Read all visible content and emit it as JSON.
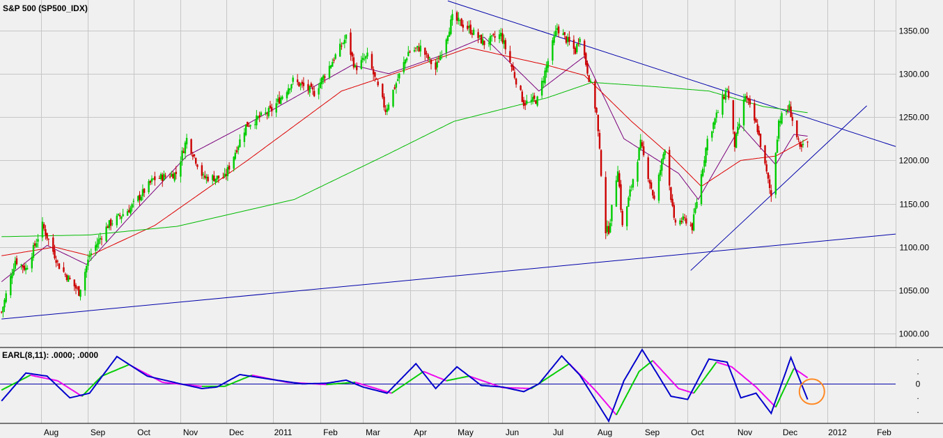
{
  "chart_data": [
    {
      "type": "candlestick",
      "title": "S&P 500 (SP500_IDX)",
      "ylim": [
        985,
        1385
      ],
      "y_ticks": [
        "1350.00",
        "1300.00",
        "1250.00",
        "1200.00",
        "1150.00",
        "1100.00",
        "1050.00",
        "1000.00"
      ],
      "y_tick_values": [
        1350,
        1300,
        1250,
        1200,
        1150,
        1100,
        1050,
        1000
      ],
      "x_ticks": [
        "Aug",
        "Sep",
        "Oct",
        "Nov",
        "Dec",
        "2011",
        "Feb",
        "Mar",
        "Apr",
        "May",
        "Jun",
        "Jul",
        "Aug",
        "Sep",
        "Oct",
        "Nov",
        "Dec",
        "2012",
        "Feb"
      ],
      "x_tick_dates": [
        "2010-08-01",
        "2010-09-01",
        "2010-10-01",
        "2010-11-01",
        "2010-12-01",
        "2011-01-01",
        "2011-02-01",
        "2011-03-01",
        "2011-04-01",
        "2011-05-01",
        "2011-06-01",
        "2011-07-01",
        "2011-08-01",
        "2011-09-01",
        "2011-10-01",
        "2011-11-01",
        "2011-12-01",
        "2012-01-01",
        "2012-02-01"
      ],
      "xlim": [
        "2010-07-05",
        "2012-02-15"
      ],
      "grid": true,
      "colors": {
        "up": "#00cc00",
        "down": "#cc0000",
        "trendline": "#0000aa",
        "ma_short": "#7a007a",
        "ma_mid": "#dd0000",
        "ma_long": "#00bb00"
      },
      "close_anchors": [
        {
          "date": "2010-07-06",
          "close": 1025
        },
        {
          "date": "2010-07-15",
          "close": 1085
        },
        {
          "date": "2010-07-22",
          "close": 1075
        },
        {
          "date": "2010-08-02",
          "close": 1125
        },
        {
          "date": "2010-08-13",
          "close": 1078
        },
        {
          "date": "2010-08-26",
          "close": 1048
        },
        {
          "date": "2010-09-02",
          "close": 1090
        },
        {
          "date": "2010-09-14",
          "close": 1125
        },
        {
          "date": "2010-09-29",
          "close": 1145
        },
        {
          "date": "2010-10-14",
          "close": 1178
        },
        {
          "date": "2010-10-29",
          "close": 1185
        },
        {
          "date": "2010-11-05",
          "close": 1225
        },
        {
          "date": "2010-11-16",
          "close": 1180
        },
        {
          "date": "2010-11-30",
          "close": 1180
        },
        {
          "date": "2010-12-14",
          "close": 1240
        },
        {
          "date": "2010-12-31",
          "close": 1258
        },
        {
          "date": "2011-01-14",
          "close": 1292
        },
        {
          "date": "2011-01-28",
          "close": 1278
        },
        {
          "date": "2011-02-18",
          "close": 1342
        },
        {
          "date": "2011-02-24",
          "close": 1306
        },
        {
          "date": "2011-03-04",
          "close": 1320
        },
        {
          "date": "2011-03-16",
          "close": 1258
        },
        {
          "date": "2011-03-31",
          "close": 1325
        },
        {
          "date": "2011-04-08",
          "close": 1330
        },
        {
          "date": "2011-04-18",
          "close": 1305
        },
        {
          "date": "2011-04-29",
          "close": 1364
        },
        {
          "date": "2011-05-10",
          "close": 1352
        },
        {
          "date": "2011-05-20",
          "close": 1335
        },
        {
          "date": "2011-05-31",
          "close": 1345
        },
        {
          "date": "2011-06-15",
          "close": 1266
        },
        {
          "date": "2011-06-24",
          "close": 1270
        },
        {
          "date": "2011-07-07",
          "close": 1353
        },
        {
          "date": "2011-07-19",
          "close": 1326
        },
        {
          "date": "2011-07-22",
          "close": 1345
        },
        {
          "date": "2011-08-02",
          "close": 1254
        },
        {
          "date": "2011-08-08",
          "close": 1119
        },
        {
          "date": "2011-08-10",
          "close": 1120
        },
        {
          "date": "2011-08-16",
          "close": 1192
        },
        {
          "date": "2011-08-19",
          "close": 1123
        },
        {
          "date": "2011-08-31",
          "close": 1219
        },
        {
          "date": "2011-09-09",
          "close": 1154
        },
        {
          "date": "2011-09-16",
          "close": 1216
        },
        {
          "date": "2011-09-22",
          "close": 1129
        },
        {
          "date": "2011-09-30",
          "close": 1131
        },
        {
          "date": "2011-10-04",
          "close": 1123
        },
        {
          "date": "2011-10-14",
          "close": 1224
        },
        {
          "date": "2011-10-27",
          "close": 1284
        },
        {
          "date": "2011-11-01",
          "close": 1218
        },
        {
          "date": "2011-11-08",
          "close": 1275
        },
        {
          "date": "2011-11-16",
          "close": 1236
        },
        {
          "date": "2011-11-25",
          "close": 1159
        },
        {
          "date": "2011-11-30",
          "close": 1246
        },
        {
          "date": "2011-12-07",
          "close": 1261
        },
        {
          "date": "2011-12-14",
          "close": 1212
        },
        {
          "date": "2011-12-19",
          "close": 1220
        }
      ],
      "moving_averages": [
        {
          "points": [
            {
              "date": "2010-07-06",
              "value": 1060
            },
            {
              "date": "2010-08-05",
              "value": 1102
            },
            {
              "date": "2010-08-31",
              "value": 1080
            },
            {
              "date": "2010-09-30",
              "value": 1138
            },
            {
              "date": "2010-11-05",
              "value": 1205
            },
            {
              "date": "2010-12-15",
              "value": 1242
            },
            {
              "date": "2011-02-22",
              "value": 1310
            },
            {
              "date": "2011-03-18",
              "value": 1300
            },
            {
              "date": "2011-04-20",
              "value": 1320
            },
            {
              "date": "2011-05-20",
              "value": 1342
            },
            {
              "date": "2011-06-25",
              "value": 1280
            },
            {
              "date": "2011-07-25",
              "value": 1320
            },
            {
              "date": "2011-08-20",
              "value": 1225
            },
            {
              "date": "2011-09-25",
              "value": 1185
            },
            {
              "date": "2011-10-08",
              "value": 1155
            },
            {
              "date": "2011-11-05",
              "value": 1240
            },
            {
              "date": "2011-11-28",
              "value": 1195
            },
            {
              "date": "2011-12-10",
              "value": 1230
            },
            {
              "date": "2011-12-19",
              "value": 1228
            }
          ]
        },
        {
          "points": [
            {
              "date": "2010-07-06",
              "value": 1090
            },
            {
              "date": "2010-08-10",
              "value": 1100
            },
            {
              "date": "2010-09-02",
              "value": 1090
            },
            {
              "date": "2010-10-15",
              "value": 1125
            },
            {
              "date": "2010-12-15",
              "value": 1200
            },
            {
              "date": "2011-02-15",
              "value": 1280
            },
            {
              "date": "2011-03-30",
              "value": 1305
            },
            {
              "date": "2011-05-10",
              "value": 1330
            },
            {
              "date": "2011-06-30",
              "value": 1310
            },
            {
              "date": "2011-07-25",
              "value": 1298
            },
            {
              "date": "2011-08-25",
              "value": 1245
            },
            {
              "date": "2011-09-20",
              "value": 1205
            },
            {
              "date": "2011-10-10",
              "value": 1170
            },
            {
              "date": "2011-11-05",
              "value": 1200
            },
            {
              "date": "2011-11-28",
              "value": 1205
            },
            {
              "date": "2011-12-19",
              "value": 1225
            }
          ]
        },
        {
          "points": [
            {
              "date": "2010-07-06",
              "value": 1112
            },
            {
              "date": "2010-09-02",
              "value": 1114
            },
            {
              "date": "2010-10-30",
              "value": 1124
            },
            {
              "date": "2011-01-15",
              "value": 1155
            },
            {
              "date": "2011-03-15",
              "value": 1205
            },
            {
              "date": "2011-04-30",
              "value": 1245
            },
            {
              "date": "2011-06-30",
              "value": 1272
            },
            {
              "date": "2011-07-30",
              "value": 1290
            },
            {
              "date": "2011-09-10",
              "value": 1285
            },
            {
              "date": "2011-10-15",
              "value": 1280
            },
            {
              "date": "2011-11-20",
              "value": 1262
            },
            {
              "date": "2011-12-19",
              "value": 1255
            }
          ]
        }
      ],
      "trendlines": [
        {
          "points": [
            {
              "date": "2011-04-26",
              "value": 1384
            },
            {
              "date": "2012-02-15",
              "value": 1216
            }
          ]
        },
        {
          "points": [
            {
              "date": "2010-07-06",
              "value": 1017
            },
            {
              "date": "2012-02-15",
              "value": 1115
            }
          ]
        },
        {
          "points": [
            {
              "date": "2011-10-03",
              "value": 1073
            },
            {
              "date": "2012-01-27",
              "value": 1263
            }
          ]
        }
      ]
    },
    {
      "type": "line",
      "title": "EARL(8,11): .0000; .0000",
      "zero_label": "0",
      "y_ticks_right": [
        ".",
        ".",
        "0",
        ".",
        "."
      ],
      "ylim": [
        -1.25,
        1.15
      ],
      "colors": {
        "fast": "#0000cc",
        "slow": "#00cc00",
        "slow_falling": "#ee00ee",
        "zero": "#0000aa",
        "highlight": "#ff8822"
      },
      "series": [
        {
          "points": [
            {
              "date": "2010-07-06",
              "value": -0.55
            },
            {
              "date": "2010-07-22",
              "value": 0.35
            },
            {
              "date": "2010-08-05",
              "value": 0.25
            },
            {
              "date": "2010-08-20",
              "value": -0.45
            },
            {
              "date": "2010-09-02",
              "value": -0.3
            },
            {
              "date": "2010-09-20",
              "value": 0.88
            },
            {
              "date": "2010-10-10",
              "value": 0.25
            },
            {
              "date": "2010-11-01",
              "value": 0.0
            },
            {
              "date": "2010-11-15",
              "value": -0.15
            },
            {
              "date": "2010-11-25",
              "value": -0.1
            },
            {
              "date": "2010-12-10",
              "value": 0.3
            },
            {
              "date": "2010-12-30",
              "value": 0.15
            },
            {
              "date": "2011-01-20",
              "value": 0.0
            },
            {
              "date": "2011-02-05",
              "value": 0.02
            },
            {
              "date": "2011-02-18",
              "value": 0.12
            },
            {
              "date": "2011-03-01",
              "value": -0.1
            },
            {
              "date": "2011-03-17",
              "value": -0.3
            },
            {
              "date": "2011-04-05",
              "value": 0.65
            },
            {
              "date": "2011-04-18",
              "value": -0.15
            },
            {
              "date": "2011-05-02",
              "value": 0.55
            },
            {
              "date": "2011-05-18",
              "value": -0.05
            },
            {
              "date": "2011-06-01",
              "value": -0.1
            },
            {
              "date": "2011-06-15",
              "value": -0.25
            },
            {
              "date": "2011-06-25",
              "value": 0.0
            },
            {
              "date": "2011-07-10",
              "value": 0.9
            },
            {
              "date": "2011-07-22",
              "value": 0.28
            },
            {
              "date": "2011-08-10",
              "value": -1.2
            },
            {
              "date": "2011-08-20",
              "value": 0.1
            },
            {
              "date": "2011-09-01",
              "value": 1.1
            },
            {
              "date": "2011-09-10",
              "value": 0.4
            },
            {
              "date": "2011-09-20",
              "value": -0.4
            },
            {
              "date": "2011-10-01",
              "value": -0.5
            },
            {
              "date": "2011-10-15",
              "value": 0.8
            },
            {
              "date": "2011-10-27",
              "value": 0.7
            },
            {
              "date": "2011-11-05",
              "value": -0.45
            },
            {
              "date": "2011-11-15",
              "value": -0.3
            },
            {
              "date": "2011-11-25",
              "value": -0.95
            },
            {
              "date": "2011-12-08",
              "value": 0.85
            },
            {
              "date": "2011-12-19",
              "value": -0.5
            }
          ]
        },
        {
          "points": [
            {
              "date": "2010-07-06",
              "value": -0.2
            },
            {
              "date": "2010-07-25",
              "value": 0.28
            },
            {
              "date": "2010-08-12",
              "value": 0.1
            },
            {
              "date": "2010-08-28",
              "value": -0.4
            },
            {
              "date": "2010-09-10",
              "value": 0.25
            },
            {
              "date": "2010-09-28",
              "value": 0.62
            },
            {
              "date": "2010-10-20",
              "value": 0.05
            },
            {
              "date": "2010-11-15",
              "value": -0.08
            },
            {
              "date": "2010-11-30",
              "value": -0.08
            },
            {
              "date": "2010-12-18",
              "value": 0.28
            },
            {
              "date": "2011-01-10",
              "value": 0.05
            },
            {
              "date": "2011-02-05",
              "value": -0.02
            },
            {
              "date": "2011-02-24",
              "value": 0.05
            },
            {
              "date": "2011-03-20",
              "value": -0.3
            },
            {
              "date": "2011-04-10",
              "value": 0.4
            },
            {
              "date": "2011-04-25",
              "value": 0.1
            },
            {
              "date": "2011-05-10",
              "value": 0.25
            },
            {
              "date": "2011-06-01",
              "value": -0.12
            },
            {
              "date": "2011-06-20",
              "value": -0.15
            },
            {
              "date": "2011-07-15",
              "value": 0.65
            },
            {
              "date": "2011-08-01",
              "value": -0.2
            },
            {
              "date": "2011-08-15",
              "value": -1.0
            },
            {
              "date": "2011-08-30",
              "value": 0.4
            },
            {
              "date": "2011-09-08",
              "value": 0.75
            },
            {
              "date": "2011-09-25",
              "value": -0.15
            },
            {
              "date": "2011-10-05",
              "value": -0.3
            },
            {
              "date": "2011-10-20",
              "value": 0.7
            },
            {
              "date": "2011-10-30",
              "value": 0.55
            },
            {
              "date": "2011-11-15",
              "value": -0.1
            },
            {
              "date": "2011-11-28",
              "value": -0.75
            },
            {
              "date": "2011-12-10",
              "value": 0.5
            },
            {
              "date": "2011-12-19",
              "value": 0.2
            }
          ]
        }
      ],
      "highlight_circle": {
        "date": "2011-12-20",
        "value": -0.25
      }
    }
  ]
}
